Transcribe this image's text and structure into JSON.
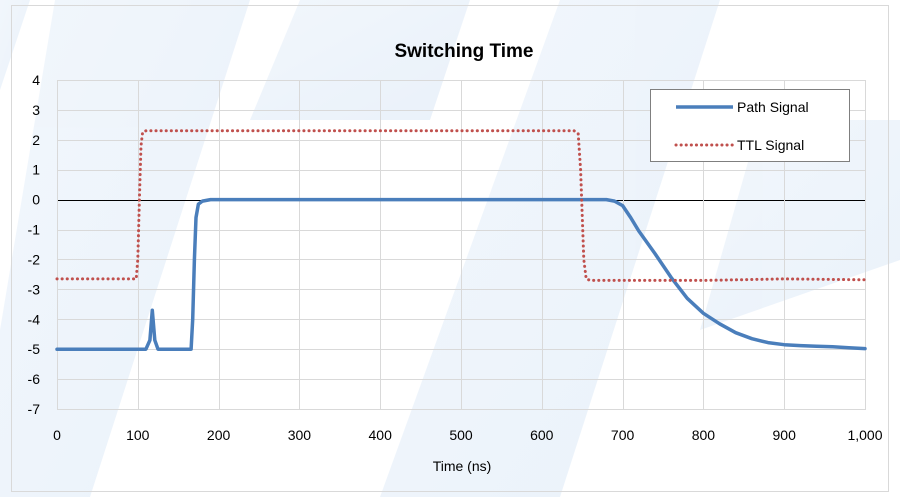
{
  "chart_data": {
    "type": "line",
    "title": "Switching Time",
    "xlabel": "Time (ns)",
    "ylabel": "",
    "xlim": [
      0,
      1000
    ],
    "ylim": [
      -7,
      4
    ],
    "x_ticks": [
      0,
      100,
      200,
      300,
      400,
      500,
      600,
      700,
      800,
      900,
      1000
    ],
    "x_tick_labels": [
      "0",
      "100",
      "200",
      "300",
      "400",
      "500",
      "600",
      "700",
      "800",
      "900",
      "1,000"
    ],
    "y_ticks": [
      4,
      3,
      2,
      1,
      0,
      -1,
      -2,
      -3,
      -4,
      -5,
      -6,
      -7
    ],
    "y_tick_labels": [
      "4",
      "3",
      "2",
      "1",
      "0",
      "-1",
      "-2",
      "-3",
      "-4",
      "-5",
      "-6",
      "-7"
    ],
    "grid": true,
    "legend_position": "top-right",
    "series": [
      {
        "name": "Path Signal",
        "color": "#4a7ebb",
        "style": "solid",
        "points": [
          [
            0,
            -5.0
          ],
          [
            100,
            -5.0
          ],
          [
            110,
            -5.0
          ],
          [
            115,
            -4.7
          ],
          [
            118,
            -3.7
          ],
          [
            121,
            -4.7
          ],
          [
            125,
            -5.0
          ],
          [
            160,
            -5.0
          ],
          [
            166,
            -5.0
          ],
          [
            168,
            -4.0
          ],
          [
            170,
            -2.0
          ],
          [
            172,
            -0.6
          ],
          [
            175,
            -0.15
          ],
          [
            180,
            -0.05
          ],
          [
            190,
            0.0
          ],
          [
            300,
            0.0
          ],
          [
            500,
            0.0
          ],
          [
            680,
            0.0
          ],
          [
            690,
            -0.05
          ],
          [
            700,
            -0.2
          ],
          [
            710,
            -0.6
          ],
          [
            720,
            -1.05
          ],
          [
            740,
            -1.8
          ],
          [
            760,
            -2.6
          ],
          [
            780,
            -3.3
          ],
          [
            800,
            -3.8
          ],
          [
            820,
            -4.15
          ],
          [
            840,
            -4.45
          ],
          [
            860,
            -4.65
          ],
          [
            880,
            -4.78
          ],
          [
            900,
            -4.85
          ],
          [
            920,
            -4.88
          ],
          [
            940,
            -4.9
          ],
          [
            960,
            -4.92
          ],
          [
            980,
            -4.95
          ],
          [
            1000,
            -4.98
          ]
        ]
      },
      {
        "name": "TTL Signal",
        "color": "#c0504d",
        "style": "dotted",
        "points": [
          [
            0,
            -2.65
          ],
          [
            90,
            -2.65
          ],
          [
            98,
            -2.65
          ],
          [
            100,
            -2.0
          ],
          [
            102,
            0.0
          ],
          [
            104,
            1.8
          ],
          [
            106,
            2.25
          ],
          [
            110,
            2.3
          ],
          [
            300,
            2.3
          ],
          [
            500,
            2.3
          ],
          [
            640,
            2.3
          ],
          [
            645,
            2.2
          ],
          [
            648,
            1.0
          ],
          [
            650,
            -0.5
          ],
          [
            652,
            -2.0
          ],
          [
            655,
            -2.65
          ],
          [
            660,
            -2.7
          ],
          [
            800,
            -2.7
          ],
          [
            900,
            -2.65
          ],
          [
            1000,
            -2.68
          ]
        ]
      }
    ]
  }
}
